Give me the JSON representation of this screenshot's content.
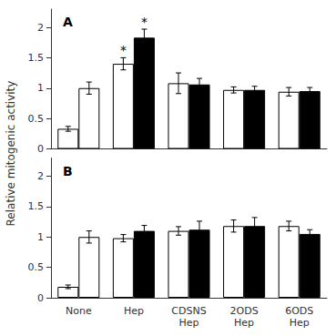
{
  "chart_data": [
    {
      "type": "bar",
      "title": "A",
      "ylabel": "Relative mitogenic activity",
      "categories": [
        "None",
        "Hep",
        "CDSNS\nHep",
        "2ODS\nHep",
        "6ODS\nHep"
      ],
      "series": [
        {
          "values": [
            0.33,
            1.4,
            1.08,
            0.97,
            0.94
          ],
          "errors": [
            0.04,
            0.1,
            0.17,
            0.05,
            0.07
          ],
          "colors": [
            "#ffffff",
            "#ffffff",
            "#ffffff",
            "#ffffff",
            "#ffffff"
          ]
        },
        {
          "values": [
            1.0,
            1.83,
            1.06,
            0.97,
            0.95
          ],
          "errors": [
            0.1,
            0.14,
            0.1,
            0.06,
            0.06
          ],
          "colors": [
            "#ffffff",
            "#000000",
            "#000000",
            "#000000",
            "#000000"
          ]
        }
      ],
      "annotations": [
        {
          "text": "*",
          "series": 0,
          "category": "Hep"
        },
        {
          "text": "*",
          "series": 1,
          "category": "Hep"
        }
      ],
      "ylim": [
        0,
        2.3
      ],
      "yticks": [
        0,
        0.5,
        1,
        1.5,
        2
      ],
      "grid": false,
      "tick_labels": "y"
    },
    {
      "type": "bar",
      "title": "B",
      "categories": [
        "None",
        "Hep",
        "CDSNS\nHep",
        "2ODS\nHep",
        "6ODS\nHep"
      ],
      "series": [
        {
          "values": [
            0.18,
            0.98,
            1.1,
            1.18,
            1.18
          ],
          "errors": [
            0.03,
            0.06,
            0.07,
            0.1,
            0.08
          ],
          "colors": [
            "#ffffff",
            "#ffffff",
            "#ffffff",
            "#ffffff",
            "#ffffff"
          ]
        },
        {
          "values": [
            1.0,
            1.1,
            1.12,
            1.18,
            1.05
          ],
          "errors": [
            0.1,
            0.09,
            0.14,
            0.14,
            0.07
          ],
          "colors": [
            "#ffffff",
            "#000000",
            "#000000",
            "#000000",
            "#000000"
          ]
        }
      ],
      "ylim": [
        0,
        2.3
      ],
      "yticks": [
        0,
        0.5,
        1,
        1.5,
        2
      ],
      "grid": false
    }
  ]
}
